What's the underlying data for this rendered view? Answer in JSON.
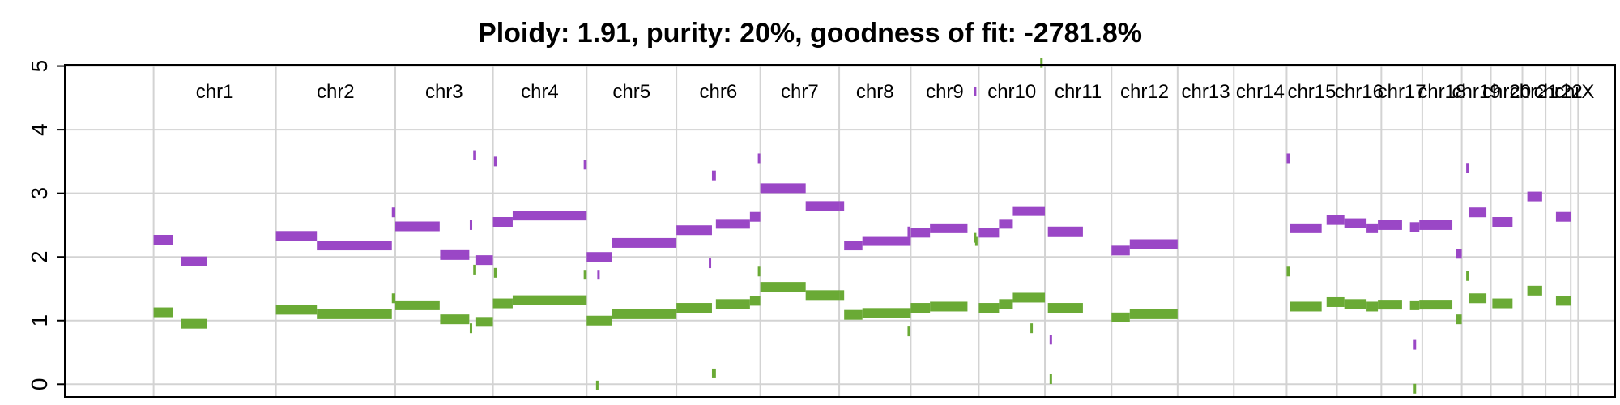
{
  "chart_data": {
    "type": "scatter",
    "title": "Ploidy: 1.91, purity: 20%, goodness of fit: -2781.8%",
    "xlabel": "",
    "ylabel": "",
    "ylim": [
      0,
      5
    ],
    "yticks": [
      "0",
      "1",
      "2",
      "3",
      "4",
      "5"
    ],
    "grid": true,
    "colors": {
      "major": "#9a47c6",
      "minor": "#6aaa35"
    },
    "chromosomes": [
      {
        "name": "chr1",
        "start": 0,
        "end": 248
      },
      {
        "name": "chr2",
        "start": 248,
        "end": 490
      },
      {
        "name": "chr3",
        "start": 490,
        "end": 688
      },
      {
        "name": "chr4",
        "start": 688,
        "end": 878
      },
      {
        "name": "chr5",
        "start": 878,
        "end": 1060
      },
      {
        "name": "chr6",
        "start": 1060,
        "end": 1230
      },
      {
        "name": "chr7",
        "start": 1230,
        "end": 1390
      },
      {
        "name": "chr8",
        "start": 1390,
        "end": 1535
      },
      {
        "name": "chr9",
        "start": 1535,
        "end": 1673
      },
      {
        "name": "chr10",
        "start": 1673,
        "end": 1807
      },
      {
        "name": "chr11",
        "start": 1807,
        "end": 1942
      },
      {
        "name": "chr12",
        "start": 1942,
        "end": 2076
      },
      {
        "name": "chr13",
        "start": 2076,
        "end": 2190
      },
      {
        "name": "chr14",
        "start": 2190,
        "end": 2297
      },
      {
        "name": "chr15",
        "start": 2297,
        "end": 2399
      },
      {
        "name": "chr16",
        "start": 2399,
        "end": 2489
      },
      {
        "name": "chr17",
        "start": 2489,
        "end": 2572
      },
      {
        "name": "chr18",
        "start": 2572,
        "end": 2652
      },
      {
        "name": "chr19",
        "start": 2652,
        "end": 2711
      },
      {
        "name": "chr20",
        "start": 2711,
        "end": 2775
      },
      {
        "name": "chr21",
        "start": 2775,
        "end": 2822
      },
      {
        "name": "chr22",
        "start": 2822,
        "end": 2873
      },
      {
        "name": "chrX",
        "start": 2873,
        "end": 2888
      }
    ],
    "x_range": [
      -180,
      2963
    ],
    "series": [
      {
        "key": "major",
        "segments": [
          [
            0,
            40,
            2.27
          ],
          [
            55,
            108,
            1.93
          ],
          [
            248,
            331,
            2.33
          ],
          [
            331,
            483,
            2.18
          ],
          [
            483,
            490,
            2.7
          ],
          [
            490,
            580,
            2.48
          ],
          [
            581,
            640,
            2.03
          ],
          [
            641,
            646,
            2.5
          ],
          [
            648,
            654,
            3.6
          ],
          [
            654,
            688,
            1.95
          ],
          [
            690,
            696,
            3.5
          ],
          [
            688,
            728,
            2.55
          ],
          [
            728,
            878,
            2.65
          ],
          [
            872,
            878,
            3.45
          ],
          [
            878,
            930,
            2.0
          ],
          [
            930,
            1060,
            2.22
          ],
          [
            1060,
            1132,
            2.42
          ],
          [
            1132,
            1140,
            3.28
          ],
          [
            1140,
            1209,
            2.52
          ],
          [
            1209,
            1230,
            2.63
          ],
          [
            1225,
            1230,
            3.55
          ],
          [
            1230,
            1322,
            3.08
          ],
          [
            1322,
            1390,
            2.8
          ],
          [
            1390,
            1400,
            2.8
          ],
          [
            1400,
            1437,
            2.18
          ],
          [
            1437,
            1535,
            2.25
          ],
          [
            1535,
            1574,
            2.38
          ],
          [
            1574,
            1650,
            2.45
          ],
          [
            1663,
            1668,
            4.6
          ],
          [
            1673,
            1714,
            2.38
          ],
          [
            1714,
            1742,
            2.52
          ],
          [
            1742,
            1807,
            2.72
          ],
          [
            1813,
            1884,
            2.4
          ],
          [
            1942,
            1979,
            2.1
          ],
          [
            1979,
            2076,
            2.2
          ],
          [
            2297,
            2303,
            3.55
          ],
          [
            2303,
            2368,
            2.45
          ],
          [
            2378,
            2414,
            2.58
          ],
          [
            2414,
            2459,
            2.53
          ],
          [
            2459,
            2482,
            2.45
          ],
          [
            2482,
            2531,
            2.5
          ],
          [
            2547,
            2566,
            2.47
          ],
          [
            2566,
            2633,
            2.5
          ],
          [
            2640,
            2652,
            2.05
          ],
          [
            2661,
            2667,
            3.4
          ],
          [
            2667,
            2702,
            2.7
          ],
          [
            2714,
            2755,
            2.55
          ],
          [
            2785,
            2815,
            2.95
          ],
          [
            2843,
            2873,
            2.63
          ]
        ]
      },
      {
        "key": "minor",
        "segments": [
          [
            0,
            40,
            1.13
          ],
          [
            55,
            108,
            0.95
          ],
          [
            248,
            331,
            1.17
          ],
          [
            331,
            483,
            1.1
          ],
          [
            483,
            490,
            1.35
          ],
          [
            490,
            580,
            1.24
          ],
          [
            581,
            640,
            1.02
          ],
          [
            641,
            646,
            0.88
          ],
          [
            648,
            654,
            1.8
          ],
          [
            654,
            688,
            0.98
          ],
          [
            690,
            696,
            1.75
          ],
          [
            688,
            728,
            1.27
          ],
          [
            728,
            878,
            1.32
          ],
          [
            872,
            878,
            1.72
          ],
          [
            897,
            902,
            -0.02
          ],
          [
            878,
            930,
            1.0
          ],
          [
            930,
            1060,
            1.1
          ],
          [
            1060,
            1132,
            1.2
          ],
          [
            1132,
            1140,
            0.17
          ],
          [
            1140,
            1209,
            1.26
          ],
          [
            1209,
            1230,
            1.31
          ],
          [
            1225,
            1230,
            1.77
          ],
          [
            1230,
            1322,
            1.53
          ],
          [
            1322,
            1390,
            1.4
          ],
          [
            1390,
            1400,
            1.4
          ],
          [
            1400,
            1437,
            1.09
          ],
          [
            1437,
            1535,
            1.12
          ],
          [
            1535,
            1574,
            1.2
          ],
          [
            1574,
            1650,
            1.22
          ],
          [
            1663,
            1668,
            2.3
          ],
          [
            1673,
            1714,
            1.2
          ],
          [
            1714,
            1742,
            1.26
          ],
          [
            1742,
            1807,
            1.36
          ],
          [
            1813,
            1884,
            1.2
          ],
          [
            1942,
            1979,
            1.05
          ],
          [
            1979,
            2076,
            1.1
          ],
          [
            2297,
            2303,
            1.77
          ],
          [
            2303,
            2368,
            1.22
          ],
          [
            2378,
            2414,
            1.29
          ],
          [
            2414,
            2459,
            1.26
          ],
          [
            2459,
            2482,
            1.22
          ],
          [
            2482,
            2531,
            1.25
          ],
          [
            2547,
            2566,
            1.24
          ],
          [
            2566,
            2633,
            1.25
          ],
          [
            2640,
            2652,
            1.02
          ],
          [
            2661,
            2667,
            1.7
          ],
          [
            2667,
            2702,
            1.35
          ],
          [
            2714,
            2755,
            1.27
          ],
          [
            2785,
            2815,
            1.47
          ],
          [
            2843,
            2873,
            1.31
          ]
        ]
      }
    ],
    "outliers": [
      {
        "key": "major",
        "x": 1531,
        "y": 2.4
      },
      {
        "key": "major",
        "x": 1128,
        "y": 1.9
      },
      {
        "key": "major",
        "x": 902,
        "y": 1.72
      },
      {
        "key": "major",
        "x": 1819,
        "y": 0.7
      },
      {
        "key": "major",
        "x": 2557,
        "y": 0.62
      },
      {
        "key": "minor",
        "x": 1531,
        "y": 0.83
      },
      {
        "key": "minor",
        "x": 1668,
        "y": 2.25
      },
      {
        "key": "minor",
        "x": 1780,
        "y": 0.88
      },
      {
        "key": "minor",
        "x": 1819,
        "y": 0.08
      },
      {
        "key": "minor",
        "x": 2557,
        "y": -0.07
      },
      {
        "key": "minor",
        "x": 1800,
        "y": 5.05
      }
    ]
  }
}
